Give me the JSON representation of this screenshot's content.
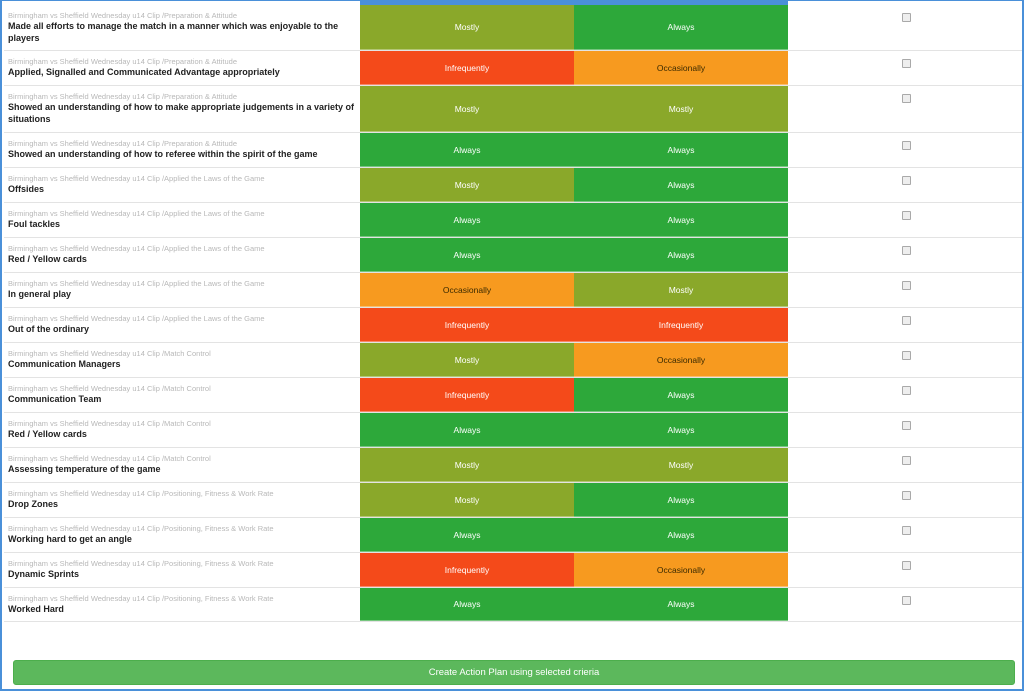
{
  "rows": [
    {
      "category": "Birmingham vs Sheffield Wednesday u14 Clip  /Preparation & Attitude",
      "name": "Made all efforts to manage the match in a manner which was enjoyable to the players",
      "rating_a": "Mostly",
      "rating_b": "Always",
      "height": 46
    },
    {
      "category": "Birmingham vs Sheffield Wednesday u14 Clip  /Preparation & Attitude",
      "name": "Applied, Signalled and Communicated Advantage appropriately",
      "rating_a": "Infrequently",
      "rating_b": "Occasionally",
      "height": 35
    },
    {
      "category": "Birmingham vs Sheffield Wednesday u14 Clip  /Preparation & Attitude",
      "name": "Showed an understanding of how to make appropriate judgements in a variety of situations",
      "rating_a": "Mostly",
      "rating_b": "Mostly",
      "height": 47
    },
    {
      "category": "Birmingham vs Sheffield Wednesday u14 Clip  /Preparation & Attitude",
      "name": "Showed an understanding of how to referee within the spirit of the game",
      "rating_a": "Always",
      "rating_b": "Always",
      "height": 35
    },
    {
      "category": "Birmingham vs Sheffield Wednesday u14 Clip  /Applied the Laws of the Game",
      "name": "Offsides",
      "rating_a": "Mostly",
      "rating_b": "Always",
      "height": 35
    },
    {
      "category": "Birmingham vs Sheffield Wednesday u14 Clip  /Applied the Laws of the Game",
      "name": "Foul tackles",
      "rating_a": "Always",
      "rating_b": "Always",
      "height": 35
    },
    {
      "category": "Birmingham vs Sheffield Wednesday u14 Clip  /Applied the Laws of the Game",
      "name": "Red / Yellow cards",
      "rating_a": "Always",
      "rating_b": "Always",
      "height": 35
    },
    {
      "category": "Birmingham vs Sheffield Wednesday u14 Clip  /Applied the Laws of the Game",
      "name": "In general play",
      "rating_a": "Occasionally",
      "rating_b": "Mostly",
      "height": 35
    },
    {
      "category": "Birmingham vs Sheffield Wednesday u14 Clip  /Applied the Laws of the Game",
      "name": "Out of the ordinary",
      "rating_a": "Infrequently",
      "rating_b": "Infrequently",
      "height": 35
    },
    {
      "category": "Birmingham vs Sheffield Wednesday u14 Clip  /Match Control",
      "name": "Communication Managers",
      "rating_a": "Mostly",
      "rating_b": "Occasionally",
      "height": 35
    },
    {
      "category": "Birmingham vs Sheffield Wednesday u14 Clip  /Match Control",
      "name": "Communication Team",
      "rating_a": "Infrequently",
      "rating_b": "Always",
      "height": 35
    },
    {
      "category": "Birmingham vs Sheffield Wednesday u14 Clip  /Match Control",
      "name": "Red / Yellow cards",
      "rating_a": "Always",
      "rating_b": "Always",
      "height": 35
    },
    {
      "category": "Birmingham vs Sheffield Wednesday u14 Clip  /Match Control",
      "name": "Assessing temperature of the game",
      "rating_a": "Mostly",
      "rating_b": "Mostly",
      "height": 35
    },
    {
      "category": "Birmingham vs Sheffield Wednesday u14 Clip  /Positioning, Fitness & Work Rate",
      "name": "Drop Zones",
      "rating_a": "Mostly",
      "rating_b": "Always",
      "height": 35
    },
    {
      "category": "Birmingham vs Sheffield Wednesday u14 Clip  /Positioning, Fitness & Work Rate",
      "name": "Working hard to get an angle",
      "rating_a": "Always",
      "rating_b": "Always",
      "height": 35
    },
    {
      "category": "Birmingham vs Sheffield Wednesday u14 Clip  /Positioning, Fitness & Work Rate",
      "name": "Dynamic Sprints",
      "rating_a": "Infrequently",
      "rating_b": "Occasionally",
      "height": 35
    },
    {
      "category": "Birmingham vs Sheffield Wednesday u14 Clip  /Positioning, Fitness & Work Rate",
      "name": "Worked Hard",
      "rating_a": "Always",
      "rating_b": "Always",
      "height": 34
    }
  ],
  "footer": {
    "action_label": "Create Action Plan using selected crieria"
  },
  "colors": {
    "Always": "#2da83a",
    "Mostly": "#8aa82a",
    "Occasionally": "#f79a1f",
    "Infrequently": "#f44a1a",
    "button": "#5cb85c"
  }
}
